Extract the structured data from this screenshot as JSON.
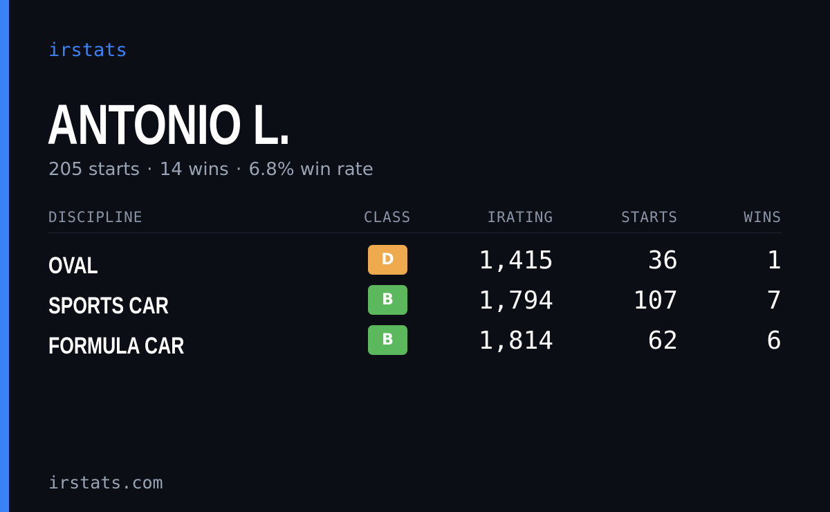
{
  "brand": "irstats",
  "player": {
    "name": "ANTONIO L.",
    "starts_text": "205 starts",
    "wins_text": "14 wins",
    "winrate_text": "6.8% win rate",
    "separator": "·"
  },
  "table": {
    "headers": {
      "discipline": "DISCIPLINE",
      "class": "CLASS",
      "irating": "IRATING",
      "starts": "STARTS",
      "wins": "WINS"
    },
    "rows": [
      {
        "discipline": "OVAL",
        "class": "D",
        "class_color": "#eeaa4c",
        "irating": "1,415",
        "starts": "36",
        "wins": "1"
      },
      {
        "discipline": "SPORTS CAR",
        "class": "B",
        "class_color": "#5cb85c",
        "irating": "1,794",
        "starts": "107",
        "wins": "7"
      },
      {
        "discipline": "FORMULA CAR",
        "class": "B",
        "class_color": "#5cb85c",
        "irating": "1,814",
        "starts": "62",
        "wins": "6"
      }
    ]
  },
  "footer": "irstats.com",
  "colors": {
    "background": "#0b0e14",
    "accent": "#3b82f6",
    "muted_text": "#9aa3b2"
  }
}
